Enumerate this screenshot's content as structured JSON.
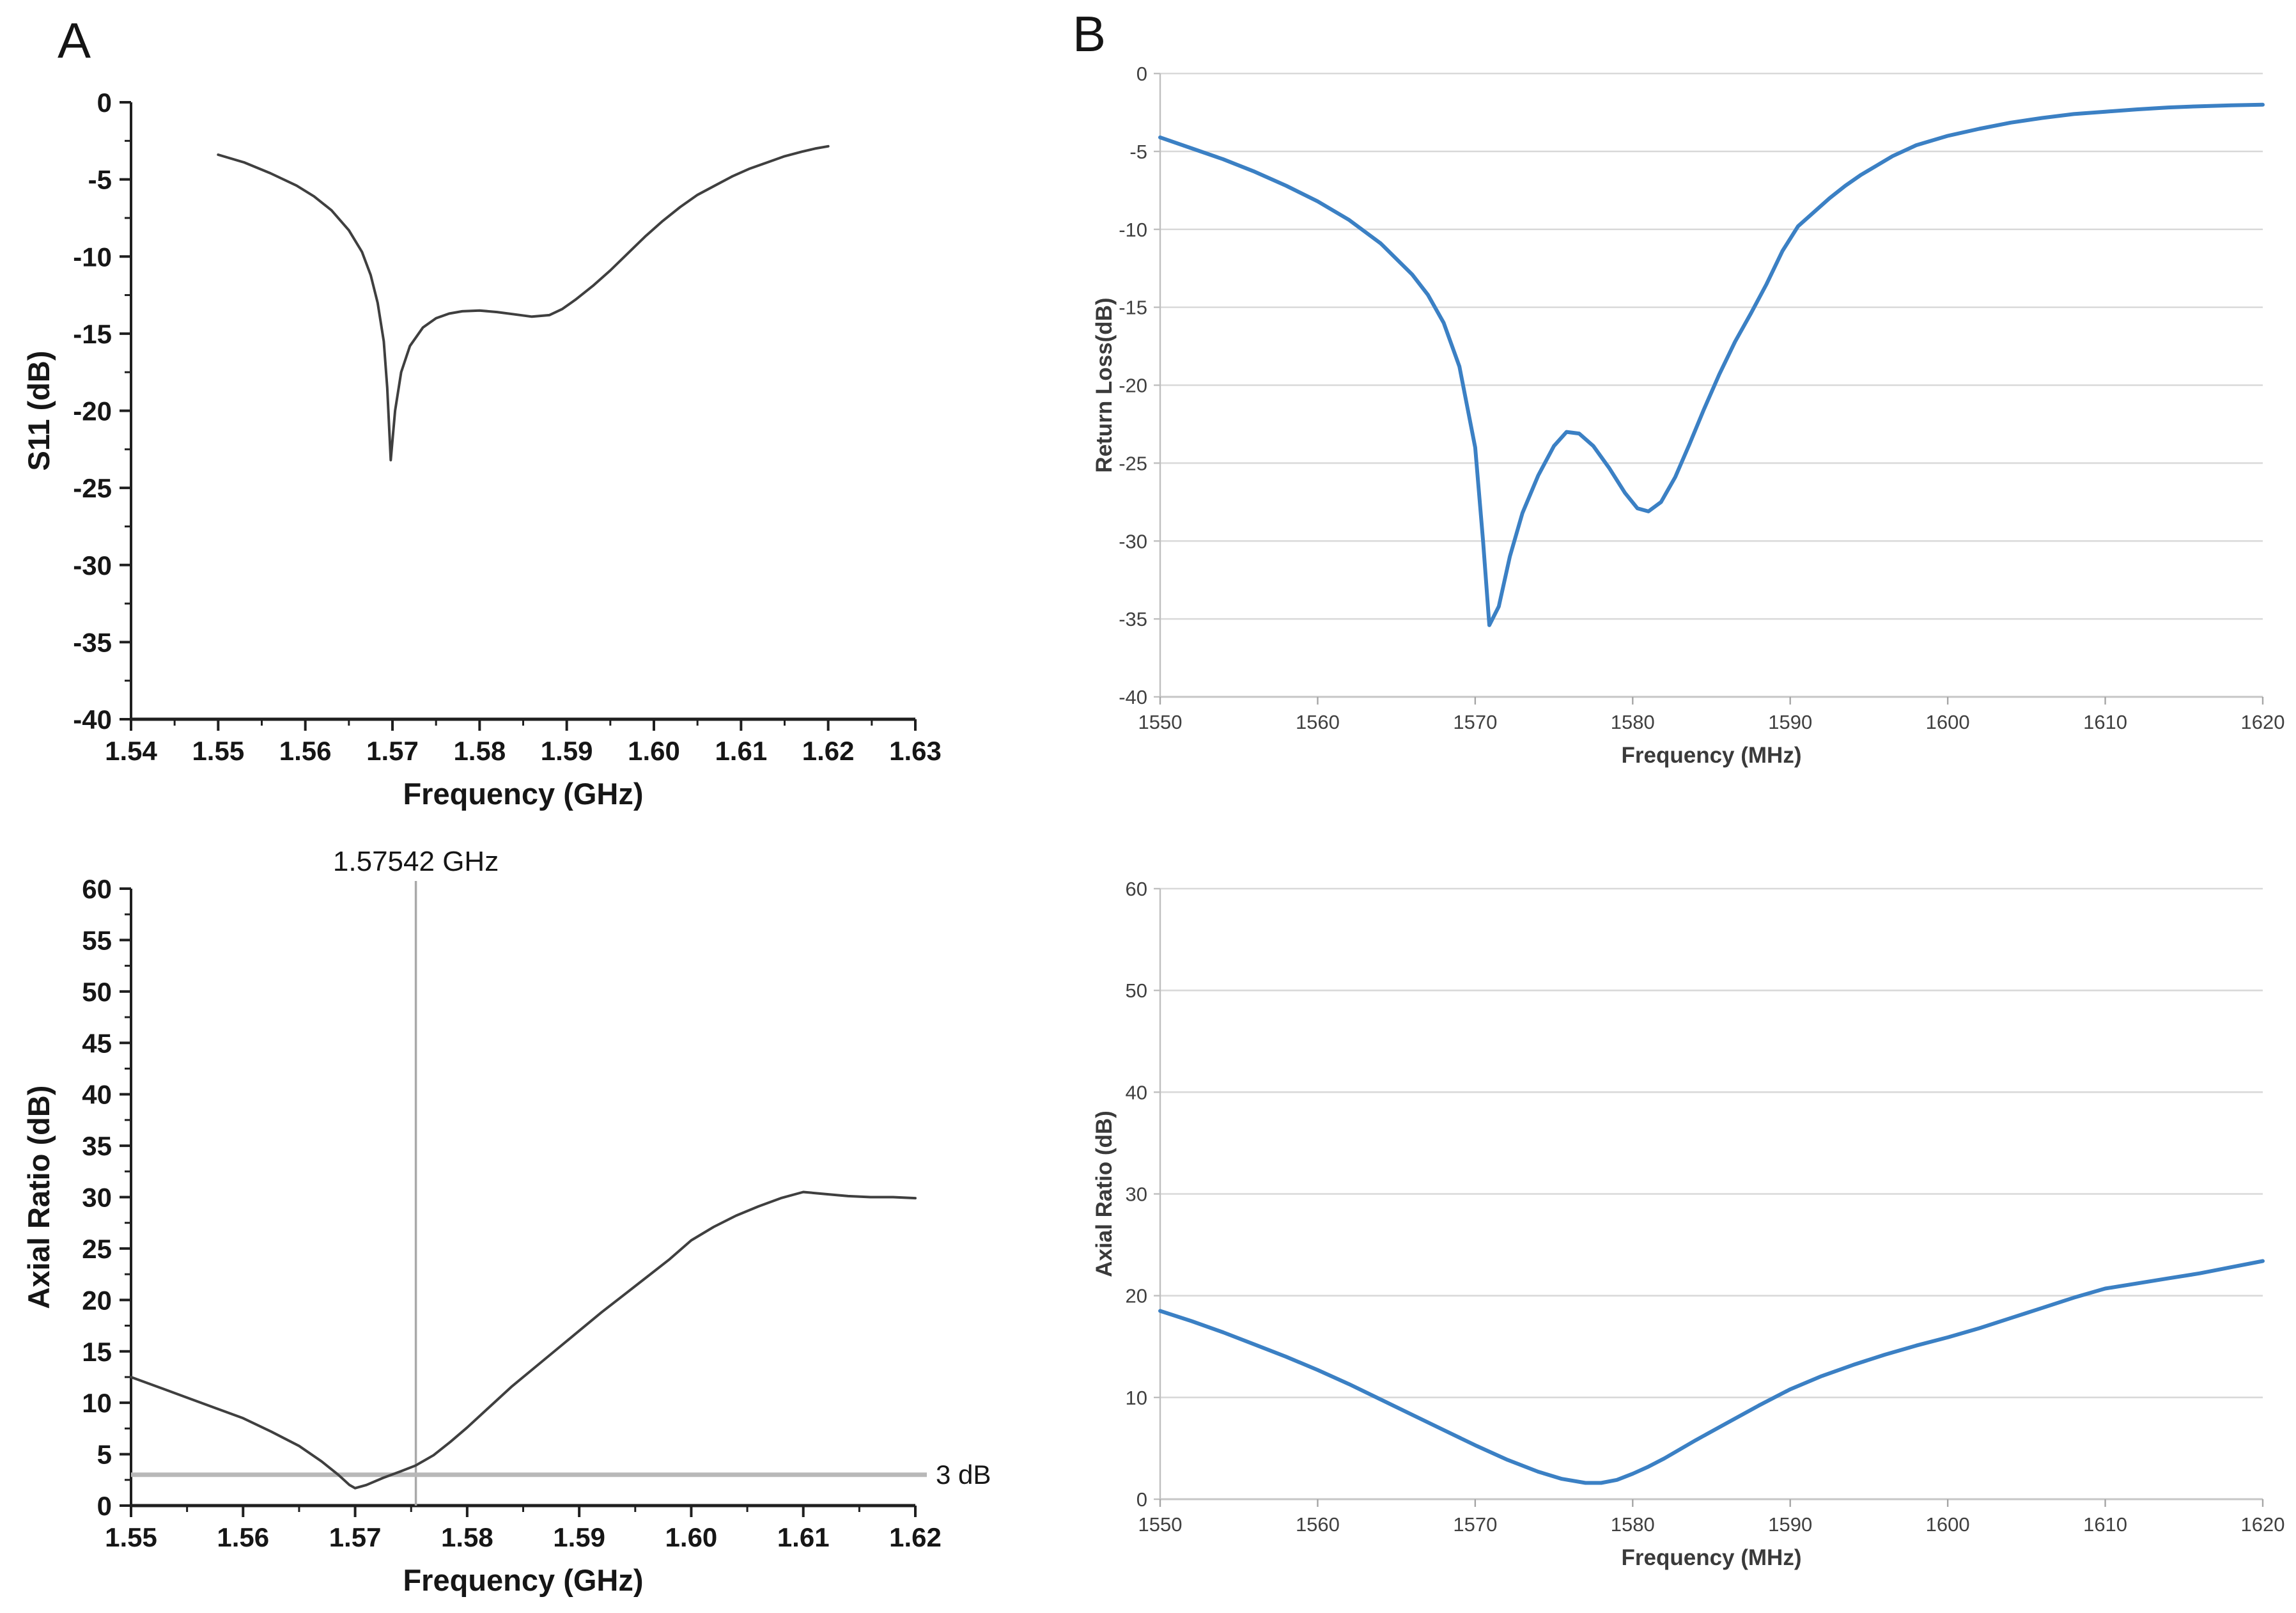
{
  "figure": {
    "background": "#ffffff"
  },
  "panels": [
    {
      "label": "A"
    },
    {
      "label": "B"
    }
  ],
  "colors": {
    "black_curve": "#3f3f3f",
    "blue_curve": "#3b80c4",
    "gridline": "#d9d9d9",
    "axis_dark": "#1f1f1f",
    "axis_gray": "#bfbfbf",
    "ref_line": "#b8b8b8",
    "marker_line": "#a9a9a9",
    "excel_text": "#404040"
  },
  "chart_data": [
    {
      "id": "s11-sim",
      "panel": "A",
      "type": "line",
      "style": "origin",
      "title": "",
      "xlabel": "Frequency (GHz)",
      "ylabel": "S11 (dB)",
      "xlim": [
        1.54,
        1.63
      ],
      "ylim": [
        -40,
        0
      ],
      "grid": false,
      "legend": "none",
      "line_color": "#3f3f3f",
      "line_width": 4,
      "rect": {
        "x0": 205,
        "x1": 1432,
        "y0": 160,
        "y1": 1125
      },
      "xticks": [
        1.54,
        1.55,
        1.56,
        1.57,
        1.58,
        1.59,
        1.6,
        1.61,
        1.62,
        1.63
      ],
      "xtick_labels": [
        "1.54",
        "1.55",
        "1.56",
        "1.57",
        "1.58",
        "1.59",
        "1.60",
        "1.61",
        "1.62",
        "1.63"
      ],
      "yticks": [
        0,
        -5,
        -10,
        -15,
        -20,
        -25,
        -30,
        -35,
        -40
      ],
      "ytick_labels": [
        "0",
        "-5",
        "-10",
        "-15",
        "-20",
        "-25",
        "-30",
        "-35",
        "-40"
      ],
      "x_minor_step": 0.005,
      "y_minor_step": 2.5,
      "annotations": [],
      "points": [
        [
          1.55,
          -3.4
        ],
        [
          1.553,
          -3.9
        ],
        [
          1.556,
          -4.6
        ],
        [
          1.559,
          -5.4
        ],
        [
          1.561,
          -6.1
        ],
        [
          1.563,
          -7.0
        ],
        [
          1.565,
          -8.3
        ],
        [
          1.5665,
          -9.7
        ],
        [
          1.5675,
          -11.2
        ],
        [
          1.5683,
          -13.0
        ],
        [
          1.569,
          -15.5
        ],
        [
          1.5694,
          -18.5
        ],
        [
          1.5698,
          -23.2
        ],
        [
          1.5703,
          -20.0
        ],
        [
          1.571,
          -17.5
        ],
        [
          1.572,
          -15.8
        ],
        [
          1.5735,
          -14.6
        ],
        [
          1.575,
          -14.0
        ],
        [
          1.5765,
          -13.7
        ],
        [
          1.578,
          -13.55
        ],
        [
          1.58,
          -13.5
        ],
        [
          1.582,
          -13.6
        ],
        [
          1.584,
          -13.75
        ],
        [
          1.586,
          -13.9
        ],
        [
          1.588,
          -13.8
        ],
        [
          1.5895,
          -13.4
        ],
        [
          1.591,
          -12.8
        ],
        [
          1.593,
          -11.9
        ],
        [
          1.595,
          -10.9
        ],
        [
          1.597,
          -9.8
        ],
        [
          1.599,
          -8.7
        ],
        [
          1.601,
          -7.7
        ],
        [
          1.603,
          -6.8
        ],
        [
          1.605,
          -6.0
        ],
        [
          1.607,
          -5.4
        ],
        [
          1.609,
          -4.8
        ],
        [
          1.611,
          -4.3
        ],
        [
          1.613,
          -3.9
        ],
        [
          1.615,
          -3.5
        ],
        [
          1.617,
          -3.2
        ],
        [
          1.6185,
          -3.0
        ],
        [
          1.62,
          -2.85
        ]
      ]
    },
    {
      "id": "return-loss-meas",
      "panel": "B",
      "type": "line",
      "style": "excel",
      "title": "",
      "xlabel": "Frequency (MHz)",
      "ylabel": "Return Loss(dB)",
      "xlim": [
        1550,
        1620
      ],
      "ylim": [
        -40,
        0
      ],
      "grid": true,
      "legend": "none",
      "line_color": "#3b80c4",
      "line_width": 6,
      "rect": {
        "x0": 1815,
        "x1": 3540,
        "y0": 115,
        "y1": 1090
      },
      "xticks": [
        1550,
        1560,
        1570,
        1580,
        1590,
        1600,
        1610,
        1620
      ],
      "xtick_labels": [
        "1550",
        "1560",
        "1570",
        "1580",
        "1590",
        "1600",
        "1610",
        "1620"
      ],
      "yticks": [
        0,
        -5,
        -10,
        -15,
        -20,
        -25,
        -30,
        -35,
        -40
      ],
      "ytick_labels": [
        "0",
        "-5",
        "-10",
        "-15",
        "-20",
        "-25",
        "-30",
        "-35",
        "-40"
      ],
      "x_minor_step": 0,
      "y_minor_step": 0,
      "annotations": [],
      "points": [
        [
          1550,
          -4.1
        ],
        [
          1552,
          -4.8
        ],
        [
          1554,
          -5.5
        ],
        [
          1556,
          -6.3
        ],
        [
          1558,
          -7.2
        ],
        [
          1560,
          -8.2
        ],
        [
          1562,
          -9.4
        ],
        [
          1564,
          -10.9
        ],
        [
          1566,
          -12.9
        ],
        [
          1567,
          -14.2
        ],
        [
          1568,
          -16.0
        ],
        [
          1569,
          -18.8
        ],
        [
          1570,
          -24.0
        ],
        [
          1570.5,
          -30.0
        ],
        [
          1570.9,
          -35.4
        ],
        [
          1571.5,
          -34.2
        ],
        [
          1572.2,
          -31.0
        ],
        [
          1573,
          -28.2
        ],
        [
          1574,
          -25.8
        ],
        [
          1575,
          -23.9
        ],
        [
          1575.8,
          -23.0
        ],
        [
          1576.6,
          -23.1
        ],
        [
          1577.5,
          -23.9
        ],
        [
          1578.5,
          -25.3
        ],
        [
          1579.5,
          -26.9
        ],
        [
          1580.3,
          -27.9
        ],
        [
          1581,
          -28.1
        ],
        [
          1581.8,
          -27.5
        ],
        [
          1582.7,
          -25.9
        ],
        [
          1583.6,
          -23.8
        ],
        [
          1584.5,
          -21.6
        ],
        [
          1585.5,
          -19.3
        ],
        [
          1586.5,
          -17.2
        ],
        [
          1587.5,
          -15.4
        ],
        [
          1588.5,
          -13.5
        ],
        [
          1589.5,
          -11.4
        ],
        [
          1590.5,
          -9.8
        ],
        [
          1591.5,
          -8.9
        ],
        [
          1592.5,
          -8.0
        ],
        [
          1593.5,
          -7.2
        ],
        [
          1594.5,
          -6.5
        ],
        [
          1595.5,
          -5.9
        ],
        [
          1596.5,
          -5.3
        ],
        [
          1598,
          -4.6
        ],
        [
          1600,
          -4.0
        ],
        [
          1602,
          -3.55
        ],
        [
          1604,
          -3.15
        ],
        [
          1606,
          -2.85
        ],
        [
          1608,
          -2.6
        ],
        [
          1610,
          -2.45
        ],
        [
          1612,
          -2.3
        ],
        [
          1614,
          -2.18
        ],
        [
          1616,
          -2.1
        ],
        [
          1618,
          -2.04
        ],
        [
          1620,
          -2.0
        ]
      ]
    },
    {
      "id": "axial-ratio-sim",
      "panel": "A",
      "type": "line",
      "style": "origin",
      "title": "",
      "xlabel": "Frequency (GHz)",
      "ylabel": "Axial Ratio (dB)",
      "xlim": [
        1.55,
        1.62
      ],
      "ylim": [
        0,
        60
      ],
      "grid": false,
      "legend": "none",
      "line_color": "#3f3f3f",
      "line_width": 4,
      "rect": {
        "x0": 205,
        "x1": 1432,
        "y0": 1390,
        "y1": 2355
      },
      "xticks": [
        1.55,
        1.56,
        1.57,
        1.58,
        1.59,
        1.6,
        1.61,
        1.62
      ],
      "xtick_labels": [
        "1.55",
        "1.56",
        "1.57",
        "1.58",
        "1.59",
        "1.60",
        "1.61",
        "1.62"
      ],
      "yticks": [
        0,
        5,
        10,
        15,
        20,
        25,
        30,
        35,
        40,
        45,
        50,
        55,
        60
      ],
      "ytick_labels": [
        "0",
        "5",
        "10",
        "15",
        "20",
        "25",
        "30",
        "35",
        "40",
        "45",
        "50",
        "55",
        "60"
      ],
      "x_minor_step": 0.005,
      "y_minor_step": 2.5,
      "annotations": [
        {
          "type": "vline",
          "x": 1.57542,
          "label": "1.57542 GHz"
        },
        {
          "type": "hline",
          "y": 3,
          "label": "3 dB"
        }
      ],
      "points": [
        [
          1.55,
          12.5
        ],
        [
          1.5525,
          11.5
        ],
        [
          1.555,
          10.5
        ],
        [
          1.5575,
          9.5
        ],
        [
          1.56,
          8.5
        ],
        [
          1.5625,
          7.2
        ],
        [
          1.565,
          5.8
        ],
        [
          1.567,
          4.3
        ],
        [
          1.5685,
          3.0
        ],
        [
          1.5695,
          2.0
        ],
        [
          1.57,
          1.7
        ],
        [
          1.571,
          2.0
        ],
        [
          1.5725,
          2.7
        ],
        [
          1.574,
          3.3
        ],
        [
          1.5754,
          3.9
        ],
        [
          1.577,
          4.9
        ],
        [
          1.5785,
          6.2
        ],
        [
          1.58,
          7.6
        ],
        [
          1.582,
          9.6
        ],
        [
          1.584,
          11.6
        ],
        [
          1.586,
          13.4
        ],
        [
          1.588,
          15.2
        ],
        [
          1.59,
          17.0
        ],
        [
          1.592,
          18.8
        ],
        [
          1.594,
          20.5
        ],
        [
          1.596,
          22.2
        ],
        [
          1.598,
          23.9
        ],
        [
          1.6,
          25.8
        ],
        [
          1.602,
          27.1
        ],
        [
          1.604,
          28.2
        ],
        [
          1.606,
          29.1
        ],
        [
          1.608,
          29.9
        ],
        [
          1.61,
          30.5
        ],
        [
          1.612,
          30.3
        ],
        [
          1.614,
          30.1
        ],
        [
          1.616,
          30.0
        ],
        [
          1.618,
          30.0
        ],
        [
          1.62,
          29.9
        ]
      ]
    },
    {
      "id": "axial-ratio-meas",
      "panel": "B",
      "type": "line",
      "style": "excel",
      "title": "",
      "xlabel": "Frequency  (MHz)",
      "ylabel": "Axial Ratio (dB)",
      "xlim": [
        1550,
        1620
      ],
      "ylim": [
        0,
        60
      ],
      "grid": true,
      "legend": "none",
      "line_color": "#3b80c4",
      "line_width": 6,
      "rect": {
        "x0": 1815,
        "x1": 3540,
        "y0": 1390,
        "y1": 2345
      },
      "xticks": [
        1550,
        1560,
        1570,
        1580,
        1590,
        1600,
        1610,
        1620
      ],
      "xtick_labels": [
        "1550",
        "1560",
        "1570",
        "1580",
        "1590",
        "1600",
        "1610",
        "1620"
      ],
      "yticks": [
        0,
        10,
        20,
        30,
        40,
        50,
        60
      ],
      "ytick_labels": [
        "0",
        "10",
        "20",
        "30",
        "40",
        "50",
        "60"
      ],
      "x_minor_step": 0,
      "y_minor_step": 0,
      "annotations": [],
      "points": [
        [
          1550,
          18.5
        ],
        [
          1552,
          17.5
        ],
        [
          1554,
          16.4
        ],
        [
          1556,
          15.2
        ],
        [
          1558,
          14.0
        ],
        [
          1560,
          12.7
        ],
        [
          1562,
          11.3
        ],
        [
          1564,
          9.8
        ],
        [
          1566,
          8.3
        ],
        [
          1568,
          6.8
        ],
        [
          1570,
          5.3
        ],
        [
          1572,
          3.9
        ],
        [
          1574,
          2.7
        ],
        [
          1575.5,
          2.0
        ],
        [
          1577,
          1.6
        ],
        [
          1578,
          1.6
        ],
        [
          1579,
          1.9
        ],
        [
          1580,
          2.5
        ],
        [
          1581,
          3.2
        ],
        [
          1582,
          4.0
        ],
        [
          1584,
          5.8
        ],
        [
          1586,
          7.5
        ],
        [
          1588,
          9.2
        ],
        [
          1590,
          10.8
        ],
        [
          1592,
          12.1
        ],
        [
          1594,
          13.2
        ],
        [
          1596,
          14.2
        ],
        [
          1598,
          15.1
        ],
        [
          1600,
          15.9
        ],
        [
          1602,
          16.8
        ],
        [
          1604,
          17.8
        ],
        [
          1606,
          18.8
        ],
        [
          1608,
          19.8
        ],
        [
          1610,
          20.7
        ],
        [
          1612,
          21.2
        ],
        [
          1614,
          21.7
        ],
        [
          1616,
          22.2
        ],
        [
          1618,
          22.8
        ],
        [
          1620,
          23.4
        ]
      ]
    }
  ]
}
